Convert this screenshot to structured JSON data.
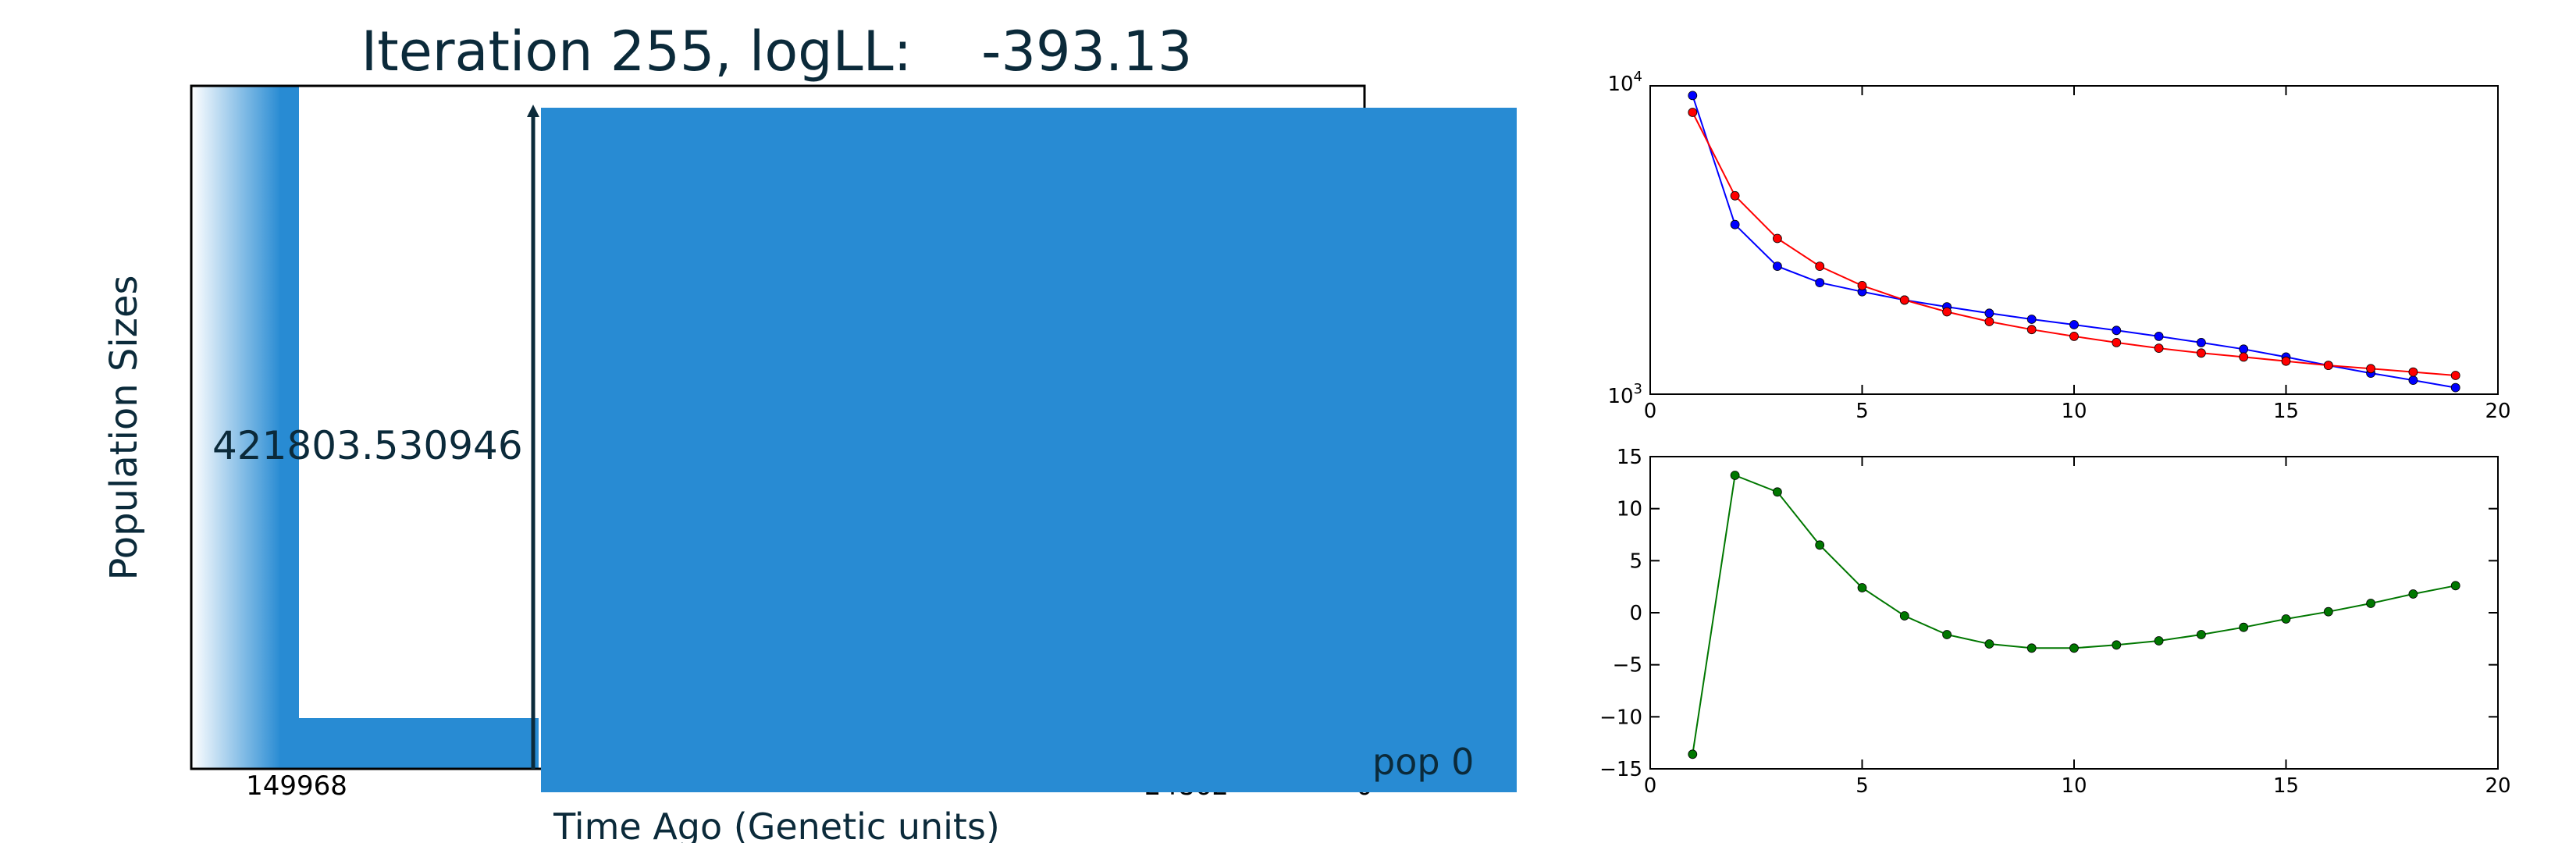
{
  "main_panel": {
    "title": "Iteration 255, logLL:    -393.13",
    "ylabel": "Population Sizes",
    "xlabel": "Time Ago (Genetic units)",
    "size_label": "421803.530946",
    "tick_left": "149968",
    "tick_mid": "24862",
    "tick_right": "0",
    "pop_label": "pop 0",
    "colors": {
      "fill": "#288bd3",
      "text": "#0b2a3a",
      "frame": "#000000"
    }
  },
  "chart_data": [
    {
      "type": "line",
      "yscale": "log",
      "xlim": [
        0,
        20
      ],
      "ylim": [
        1000,
        10000
      ],
      "x_ticks": [
        "0",
        "5",
        "10",
        "15",
        "20"
      ],
      "y_ticks": [
        "10^3",
        "10^4"
      ],
      "x": [
        1,
        2,
        3,
        4,
        5,
        6,
        7,
        8,
        9,
        10,
        11,
        12,
        13,
        14,
        15,
        16,
        17,
        18,
        19
      ],
      "series": [
        {
          "color": "#0000ff",
          "values": [
            9300,
            3550,
            2600,
            2300,
            2150,
            2020,
            1920,
            1830,
            1750,
            1680,
            1610,
            1540,
            1470,
            1400,
            1320,
            1240,
            1170,
            1110,
            1050
          ]
        },
        {
          "color": "#ff0000",
          "values": [
            8200,
            4400,
            3200,
            2600,
            2250,
            2020,
            1850,
            1720,
            1620,
            1540,
            1470,
            1410,
            1360,
            1320,
            1280,
            1240,
            1210,
            1180,
            1150
          ]
        }
      ]
    },
    {
      "type": "line",
      "xlim": [
        0,
        20
      ],
      "ylim": [
        -15,
        15
      ],
      "x_ticks": [
        "0",
        "5",
        "10",
        "15",
        "20"
      ],
      "y_ticks": [
        "15",
        "10",
        "5",
        "0",
        "−5",
        "−10",
        "−15"
      ],
      "x": [
        1,
        2,
        3,
        4,
        5,
        6,
        7,
        8,
        9,
        10,
        11,
        12,
        13,
        14,
        15,
        16,
        17,
        18,
        19
      ],
      "series": [
        {
          "color": "#007700",
          "values": [
            -13.6,
            13.2,
            11.6,
            6.5,
            2.4,
            -0.3,
            -2.1,
            -3.0,
            -3.4,
            -3.4,
            -3.1,
            -2.7,
            -2.1,
            -1.4,
            -0.6,
            0.1,
            0.9,
            1.8,
            2.6
          ]
        }
      ]
    }
  ]
}
